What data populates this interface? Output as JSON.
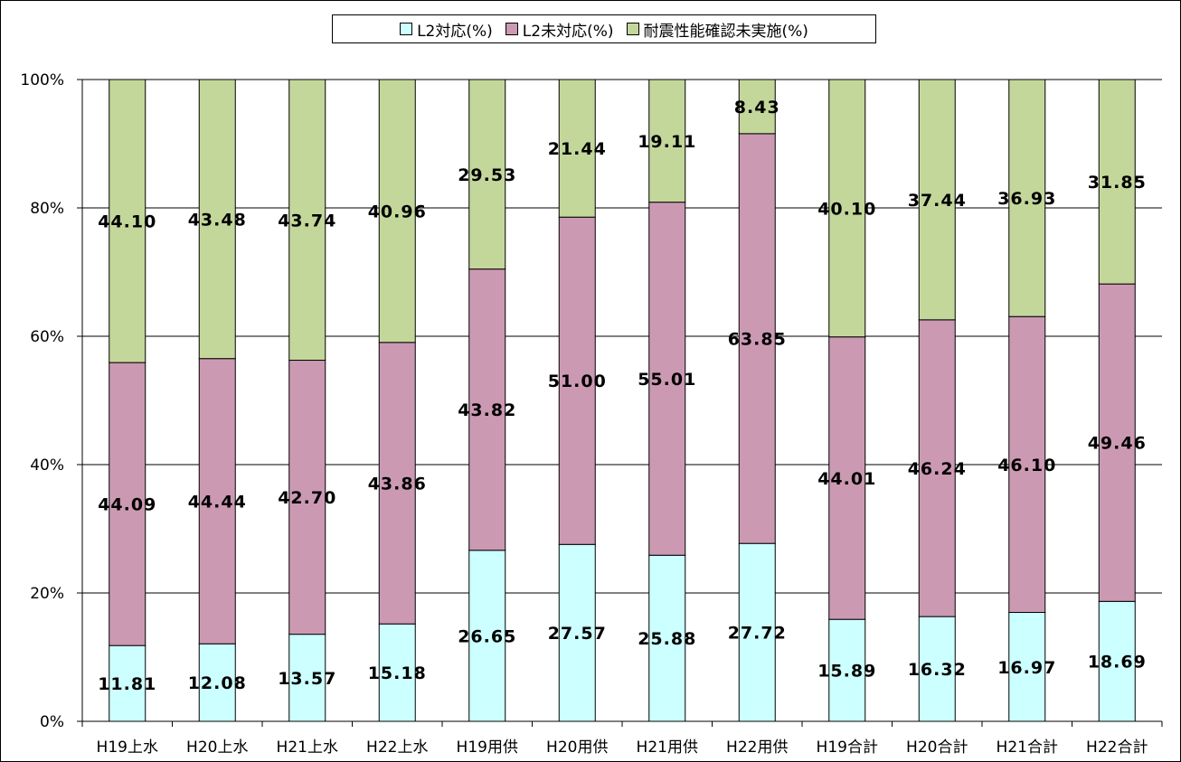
{
  "chart_data": {
    "type": "bar",
    "stacked": true,
    "categories": [
      "H19上水",
      "H20上水",
      "H21上水",
      "H22上水",
      "H19用供",
      "H20用供",
      "H21用供",
      "H22用供",
      "H19合計",
      "H20合計",
      "H21合計",
      "H22合計"
    ],
    "series": [
      {
        "name": "L2対応(%)",
        "color": "#ccffff",
        "values": [
          11.81,
          12.08,
          13.57,
          15.18,
          26.65,
          27.57,
          25.88,
          27.72,
          15.89,
          16.32,
          16.97,
          18.69
        ]
      },
      {
        "name": "L2未対応(%)",
        "color": "#cc99b3",
        "values": [
          44.09,
          44.44,
          42.7,
          43.86,
          43.82,
          51.0,
          55.01,
          63.85,
          44.01,
          46.24,
          46.1,
          49.46
        ]
      },
      {
        "name": "耐震性能確認未実施(%)",
        "color": "#c4d79b",
        "values": [
          44.1,
          43.48,
          43.74,
          40.96,
          29.53,
          21.44,
          19.11,
          8.43,
          40.1,
          37.44,
          36.93,
          31.85
        ]
      }
    ],
    "yticks": [
      "0%",
      "20%",
      "40%",
      "60%",
      "80%",
      "100%"
    ],
    "ylim": [
      0,
      100
    ],
    "grid": true,
    "legend_position": "top-center"
  }
}
